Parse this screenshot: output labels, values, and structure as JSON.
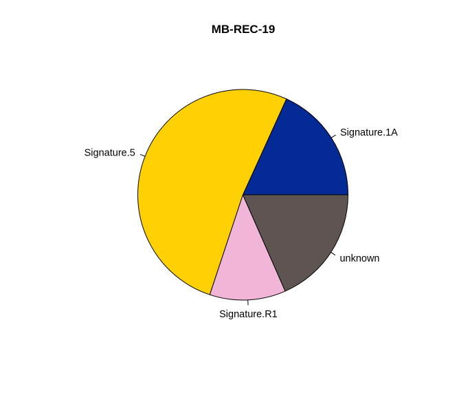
{
  "chart_data": {
    "type": "pie",
    "title": "MB-REC-19",
    "start_angle_deg": 0,
    "direction": "counterclockwise",
    "slices": [
      {
        "label": "Signature.1A",
        "value": 0.182,
        "color": "#042a96"
      },
      {
        "label": "Signature.5",
        "value": 0.517,
        "color": "#ffd004"
      },
      {
        "label": "Signature.R1",
        "value": 0.117,
        "color": "#f0b5d7"
      },
      {
        "label": "unknown",
        "value": 0.184,
        "color": "#5e5452"
      }
    ]
  }
}
